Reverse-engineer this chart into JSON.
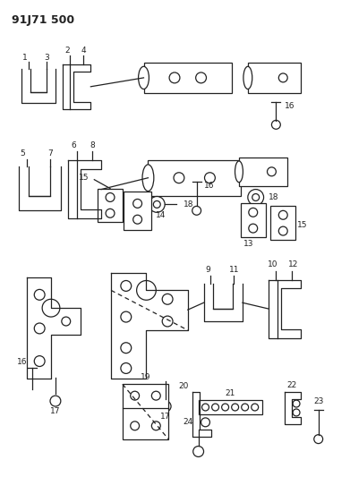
{
  "title": "91J71 500",
  "bg_color": "#ffffff",
  "line_color": "#222222",
  "fig_width": 3.91,
  "fig_height": 5.33,
  "dpi": 100
}
